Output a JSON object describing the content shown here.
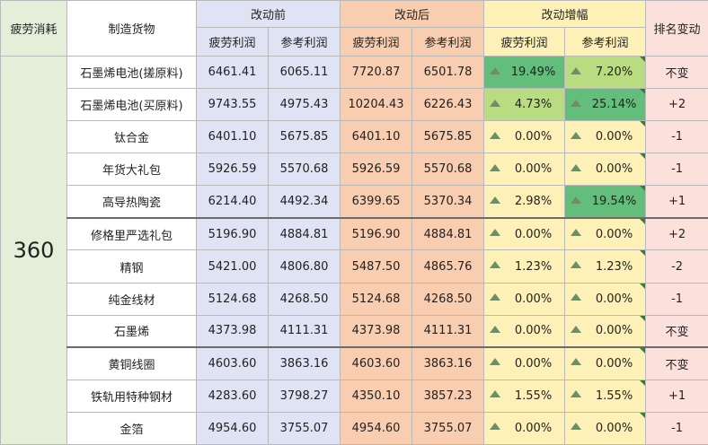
{
  "header": {
    "fatigue": "疲劳消耗",
    "goods": "制造货物",
    "before": "改动前",
    "after": "改动后",
    "change": "改动增幅",
    "rank": "排名变动",
    "sub_fatigue_profit": "疲劳利润",
    "sub_ref_profit": "参考利润"
  },
  "fatigue_value": "360",
  "rows": [
    {
      "name": "石墨烯电池(搓原料)",
      "b1": "6461.41",
      "b2": "6065.11",
      "a1": "7720.87",
      "a2": "6501.78",
      "c1": "19.49%",
      "c2": "7.20%",
      "c1p": 19.49,
      "c2p": 7.2,
      "rank": "不变"
    },
    {
      "name": "石墨烯电池(买原料)",
      "b1": "9743.55",
      "b2": "4975.43",
      "a1": "10204.43",
      "a2": "6226.43",
      "c1": "4.73%",
      "c2": "25.14%",
      "c1p": 4.73,
      "c2p": 25.14,
      "rank": "+2"
    },
    {
      "name": "钛合金",
      "b1": "6401.10",
      "b2": "5675.85",
      "a1": "6401.10",
      "a2": "5675.85",
      "c1": "0.00%",
      "c2": "0.00%",
      "c1p": 0,
      "c2p": 0,
      "rank": "-1"
    },
    {
      "name": "年货大礼包",
      "b1": "5926.59",
      "b2": "5570.68",
      "a1": "5926.59",
      "a2": "5570.68",
      "c1": "0.00%",
      "c2": "0.00%",
      "c1p": 0,
      "c2p": 0,
      "rank": "-1"
    },
    {
      "name": "高导热陶瓷",
      "b1": "6214.40",
      "b2": "4492.34",
      "a1": "6399.65",
      "a2": "5370.34",
      "c1": "2.98%",
      "c2": "19.54%",
      "c1p": 2.98,
      "c2p": 19.54,
      "rank": "+1"
    },
    {
      "name": "修格里严选礼包",
      "b1": "5196.90",
      "b2": "4884.81",
      "a1": "5196.90",
      "a2": "4884.81",
      "c1": "0.00%",
      "c2": "0.00%",
      "c1p": 0,
      "c2p": 0,
      "rank": "+2"
    },
    {
      "name": "精钢",
      "b1": "5421.00",
      "b2": "4806.80",
      "a1": "5487.50",
      "a2": "4865.76",
      "c1": "1.23%",
      "c2": "1.23%",
      "c1p": 1.23,
      "c2p": 1.23,
      "rank": "-2"
    },
    {
      "name": "纯金线材",
      "b1": "5124.68",
      "b2": "4268.50",
      "a1": "5124.68",
      "a2": "4268.50",
      "c1": "0.00%",
      "c2": "0.00%",
      "c1p": 0,
      "c2p": 0,
      "rank": "-1"
    },
    {
      "name": "石墨烯",
      "b1": "4373.98",
      "b2": "4111.31",
      "a1": "4373.98",
      "a2": "4111.31",
      "c1": "0.00%",
      "c2": "0.00%",
      "c1p": 0,
      "c2p": 0,
      "rank": "不变"
    },
    {
      "name": "黄铜线圈",
      "b1": "4603.60",
      "b2": "3863.16",
      "a1": "4603.60",
      "a2": "3863.16",
      "c1": "0.00%",
      "c2": "0.00%",
      "c1p": 0,
      "c2p": 0,
      "rank": "不变"
    },
    {
      "name": "铁轨用特种钢材",
      "b1": "4283.60",
      "b2": "3798.27",
      "a1": "4350.10",
      "a2": "3857.23",
      "c1": "1.55%",
      "c2": "1.55%",
      "c1p": 1.55,
      "c2p": 1.55,
      "rank": "+1"
    },
    {
      "name": "金箔",
      "b1": "4954.60",
      "b2": "3755.07",
      "a1": "4954.60",
      "a2": "3755.07",
      "c1": "0.00%",
      "c2": "0.00%",
      "c1p": 0,
      "c2p": 0,
      "rank": "-1"
    }
  ],
  "colors": {
    "change_high": "#63be7b",
    "change_mid": "#b9dc80",
    "change_low": "#fdf1b8"
  }
}
